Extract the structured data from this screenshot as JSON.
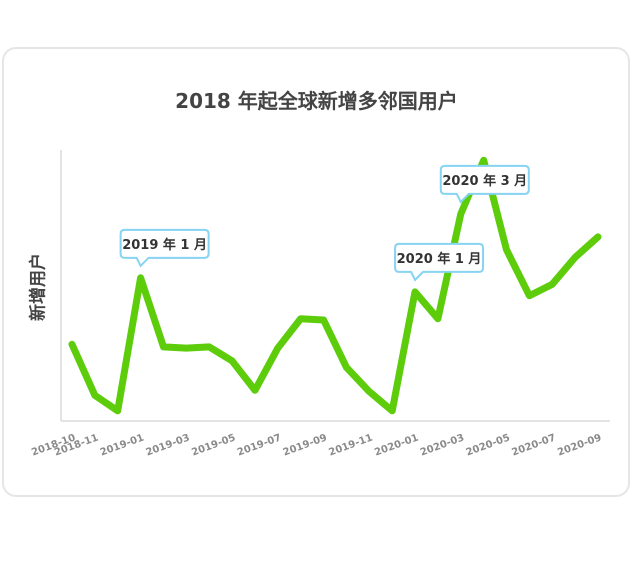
{
  "chart_data": {
    "type": "line",
    "title": "2018 年起全球新增多邻国用户",
    "xlabel": "",
    "ylabel": "新增用户",
    "x": [
      "2018-10",
      "2018-11",
      "2018-12",
      "2019-01",
      "2019-02",
      "2019-03",
      "2019-04",
      "2019-05",
      "2019-06",
      "2019-07",
      "2019-08",
      "2019-09",
      "2019-10",
      "2019-11",
      "2019-12",
      "2020-01",
      "2020-02",
      "2020-03",
      "2020-04",
      "2020-05",
      "2020-06",
      "2020-07",
      "2020-08",
      "2020-09"
    ],
    "x_tick_labels": [
      "2018-10",
      "2018-11",
      "2019-01",
      "2019-03",
      "2019-05",
      "2019-07",
      "2019-09",
      "2019-11",
      "2020-01",
      "2020-03",
      "2020-05",
      "2020-07",
      "2020-09"
    ],
    "series": [
      {
        "values": [
          26,
          6,
          0,
          52,
          25,
          24.5,
          25,
          19.5,
          8,
          24.5,
          36,
          35.5,
          17,
          7.5,
          0,
          46.5,
          36,
          77,
          98,
          63,
          45,
          49.5,
          60,
          68
        ]
      }
    ],
    "ylim": [
      -4,
      102
    ],
    "grid": false,
    "color": "#5ccc0b",
    "annotations": [
      {
        "text": "2019 年 1 月",
        "x": "2019-01"
      },
      {
        "text": "2020 年 1 月",
        "x": "2020-01"
      },
      {
        "text": "2020 年 3 月",
        "x": "2020-03"
      }
    ]
  }
}
